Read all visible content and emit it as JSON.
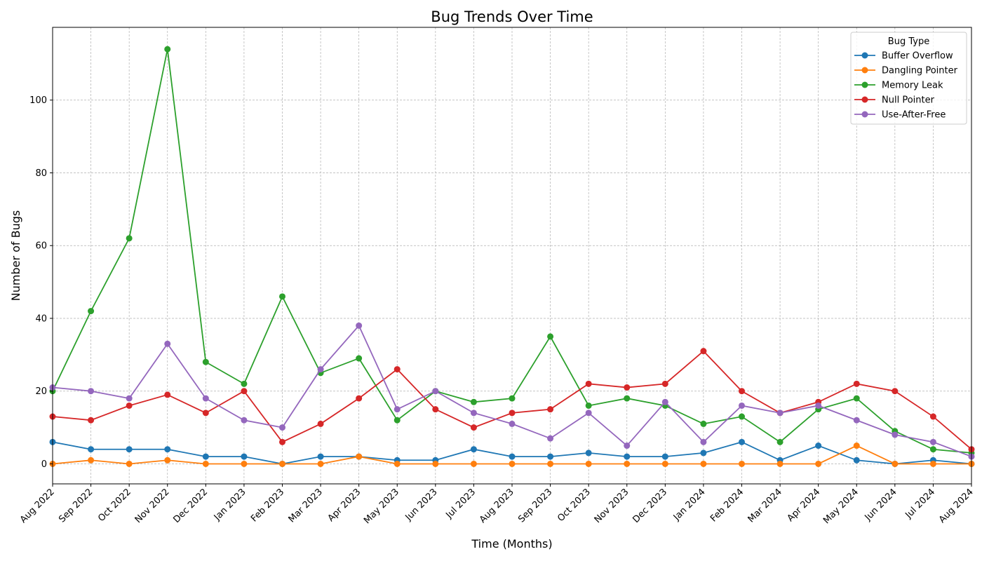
{
  "chart_data": {
    "type": "line",
    "title": "Bug Trends Over Time",
    "xlabel": "Time (Months)",
    "ylabel": "Number of Bugs",
    "ylim": [
      -5.5,
      120
    ],
    "y_ticks": [
      0,
      20,
      40,
      60,
      80,
      100
    ],
    "grid": true,
    "legend_title": "Bug Type",
    "legend_position": "top-right",
    "categories": [
      "Aug 2022",
      "Sep 2022",
      "Oct 2022",
      "Nov 2022",
      "Dec 2022",
      "Jan 2023",
      "Feb 2023",
      "Mar 2023",
      "Apr 2023",
      "May 2023",
      "Jun 2023",
      "Jul 2023",
      "Aug 2023",
      "Sep 2023",
      "Oct 2023",
      "Nov 2023",
      "Dec 2023",
      "Jan 2024",
      "Feb 2024",
      "Mar 2024",
      "Apr 2024",
      "May 2024",
      "Jun 2024",
      "Jul 2024",
      "Aug 2024"
    ],
    "series": [
      {
        "name": "Buffer Overflow",
        "color": "#1f77b4",
        "values": [
          6,
          4,
          4,
          4,
          2,
          2,
          0,
          2,
          2,
          1,
          1,
          4,
          2,
          2,
          3,
          2,
          2,
          3,
          6,
          1,
          5,
          1,
          0,
          1,
          0
        ]
      },
      {
        "name": "Dangling Pointer",
        "color": "#ff7f0e",
        "values": [
          0,
          1,
          0,
          1,
          0,
          0,
          0,
          0,
          2,
          0,
          0,
          0,
          0,
          0,
          0,
          0,
          0,
          0,
          0,
          0,
          0,
          5,
          0,
          0,
          0
        ]
      },
      {
        "name": "Memory Leak",
        "color": "#2ca02c",
        "values": [
          20,
          42,
          62,
          114,
          28,
          22,
          46,
          25,
          29,
          12,
          20,
          17,
          18,
          35,
          16,
          18,
          16,
          11,
          13,
          6,
          15,
          18,
          9,
          4,
          3
        ]
      },
      {
        "name": "Null Pointer",
        "color": "#d62728",
        "values": [
          13,
          12,
          16,
          19,
          14,
          20,
          6,
          11,
          18,
          26,
          15,
          10,
          14,
          15,
          22,
          21,
          22,
          31,
          20,
          14,
          17,
          22,
          20,
          13,
          4
        ]
      },
      {
        "name": "Use-After-Free",
        "color": "#9467bd",
        "values": [
          21,
          20,
          18,
          33,
          18,
          12,
          10,
          26,
          38,
          15,
          20,
          14,
          11,
          7,
          14,
          5,
          17,
          6,
          16,
          14,
          16,
          12,
          8,
          6,
          2
        ]
      }
    ]
  }
}
